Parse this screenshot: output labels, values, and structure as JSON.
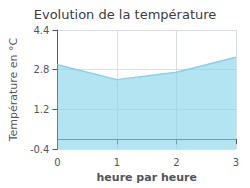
{
  "chart_data": {
    "type": "area",
    "title": "Evolution de la température",
    "xlabel": "heure par heure",
    "ylabel": "Température en °C",
    "x": [
      0,
      1,
      2,
      3
    ],
    "values": [
      3.0,
      2.4,
      2.7,
      3.3
    ],
    "color": "#7fd4e8",
    "xlim": [
      0,
      3
    ],
    "xticks": [
      0,
      1,
      2,
      3
    ],
    "ylim": [
      -0.4,
      4.4
    ],
    "yticks": [
      -0.4,
      1.2,
      2.8,
      4.4
    ],
    "grid": true
  }
}
